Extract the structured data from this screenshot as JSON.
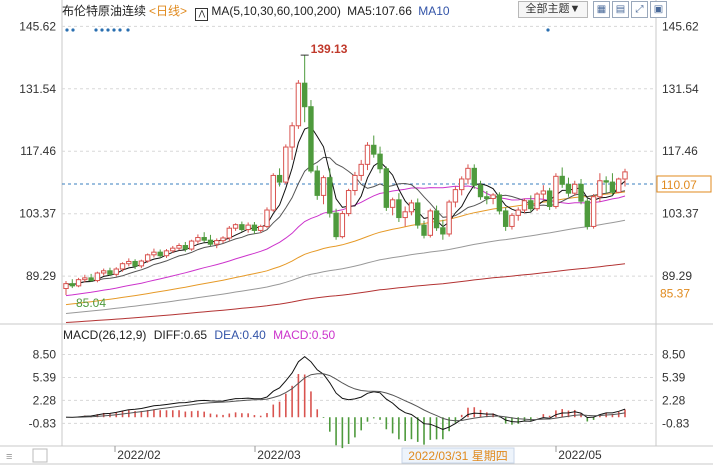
{
  "header": {
    "instrument": "布伦特原油连续",
    "period": "<日线>",
    "ma_label": "MA(5,10,30,60,100,200)",
    "ma5_label": "MA5:107.66",
    "ma10_label": "MA10",
    "theme_button": "全部主题▼",
    "tool_icons": [
      "grid-icon",
      "layout-icon",
      "fullscreen-icon",
      "window-icon"
    ]
  },
  "macd_header": {
    "name": "MACD(26,12,9)",
    "diff": "DIFF:0.65",
    "dea": "DEA:0.40",
    "macd": "MACD:0.50"
  },
  "colors": {
    "up": "#d9534f",
    "down": "#4e9a3d",
    "ma5": "#111111",
    "ma10": "#555555",
    "ma30": "#cc33cc",
    "ma60": "#e69a28",
    "ma100": "#999999",
    "ma200": "#b33333",
    "diff": "#111111",
    "dea": "#555555",
    "dotted": "#3a7fbf"
  },
  "chart_data": {
    "type": "candlestick",
    "title": "布伦特原油连续",
    "price_axis": {
      "ticks": [
        145.62,
        131.54,
        117.46,
        103.37,
        89.29
      ],
      "range": [
        78.5,
        147.5
      ]
    },
    "current_price": 110.07,
    "extra_label": 85.37,
    "annotations": {
      "high": 139.13,
      "low": 85.04
    },
    "date_axis": [
      "2022/02",
      "2022/03",
      "2022/05"
    ],
    "cursor_date": "2022/03/31 星期四",
    "candles": [
      [
        86.5,
        88.2,
        85.04,
        87.6
      ],
      [
        87.6,
        88.6,
        86.6,
        87.1
      ],
      [
        87.1,
        88.9,
        86.8,
        88.5
      ],
      [
        88.5,
        89.6,
        87.9,
        88.9
      ],
      [
        88.9,
        89.8,
        88.0,
        88.3
      ],
      [
        88.3,
        90.3,
        87.9,
        90.0
      ],
      [
        90.0,
        91.0,
        89.4,
        90.5
      ],
      [
        90.5,
        91.2,
        89.4,
        89.7
      ],
      [
        89.7,
        91.3,
        89.2,
        90.9
      ],
      [
        90.9,
        92.4,
        90.3,
        92.1
      ],
      [
        92.1,
        93.3,
        91.5,
        92.6
      ],
      [
        92.6,
        93.1,
        90.9,
        91.6
      ],
      [
        91.6,
        93.0,
        91.1,
        92.7
      ],
      [
        92.7,
        94.4,
        92.3,
        94.1
      ],
      [
        94.1,
        95.5,
        93.5,
        94.7
      ],
      [
        94.7,
        95.3,
        93.4,
        93.9
      ],
      [
        93.9,
        95.4,
        93.4,
        95.0
      ],
      [
        95.0,
        96.1,
        94.5,
        95.6
      ],
      [
        95.6,
        96.7,
        95.1,
        96.2
      ],
      [
        96.2,
        97.0,
        94.8,
        95.4
      ],
      [
        95.4,
        97.5,
        95.0,
        97.2
      ],
      [
        97.2,
        98.7,
        96.6,
        98.0
      ],
      [
        98.0,
        99.2,
        96.9,
        97.4
      ],
      [
        97.4,
        98.6,
        96.1,
        96.5
      ],
      [
        96.5,
        97.8,
        95.6,
        97.3
      ],
      [
        97.3,
        98.3,
        96.7,
        97.9
      ],
      [
        97.9,
        100.6,
        97.3,
        100.1
      ],
      [
        100.1,
        101.2,
        99.5,
        100.9
      ],
      [
        100.9,
        101.6,
        99.3,
        99.8
      ],
      [
        99.8,
        101.4,
        99.1,
        100.8
      ],
      [
        100.8,
        101.5,
        98.8,
        99.6
      ],
      [
        99.6,
        100.9,
        99.0,
        100.5
      ],
      [
        100.5,
        104.8,
        100.1,
        104.2
      ],
      [
        104.2,
        112.5,
        103.8,
        112.0
      ],
      [
        112.0,
        113.6,
        109.5,
        110.5
      ],
      [
        110.5,
        119.0,
        110.0,
        118.4
      ],
      [
        118.4,
        124.0,
        115.5,
        123.2
      ],
      [
        123.2,
        133.5,
        122.5,
        132.8
      ],
      [
        132.8,
        139.13,
        124.0,
        127.5
      ],
      [
        127.5,
        129.0,
        112.5,
        113.0
      ],
      [
        113.0,
        114.2,
        106.5,
        107.5
      ],
      [
        107.5,
        112.0,
        105.5,
        111.5
      ],
      [
        111.5,
        113.6,
        102.5,
        103.5
      ],
      [
        103.5,
        104.5,
        97.5,
        98.2
      ],
      [
        98.2,
        104.0,
        97.8,
        103.4
      ],
      [
        103.4,
        109.0,
        102.8,
        108.6
      ],
      [
        108.6,
        112.8,
        107.5,
        112.0
      ],
      [
        112.0,
        115.5,
        110.8,
        114.5
      ],
      [
        114.5,
        119.5,
        113.2,
        118.8
      ],
      [
        118.8,
        121.0,
        116.0,
        116.8
      ],
      [
        116.8,
        118.5,
        112.5,
        113.5
      ],
      [
        113.5,
        114.0,
        104.0,
        104.8
      ],
      [
        104.8,
        107.0,
        103.0,
        106.5
      ],
      [
        106.5,
        108.0,
        101.5,
        102.5
      ],
      [
        102.5,
        105.0,
        100.5,
        103.8
      ],
      [
        103.8,
        106.5,
        103.0,
        105.8
      ],
      [
        105.8,
        106.8,
        100.0,
        100.8
      ],
      [
        100.8,
        101.8,
        97.8,
        98.5
      ],
      [
        98.5,
        104.5,
        98.0,
        104.0
      ],
      [
        104.0,
        105.2,
        99.5,
        100.2
      ],
      [
        100.2,
        102.0,
        97.5,
        98.8
      ],
      [
        98.8,
        106.5,
        98.2,
        106.0
      ],
      [
        106.0,
        109.5,
        104.8,
        108.8
      ],
      [
        108.8,
        111.8,
        107.5,
        111.2
      ],
      [
        111.2,
        114.5,
        110.0,
        113.6
      ],
      [
        113.6,
        114.5,
        109.0,
        109.8
      ],
      [
        109.8,
        110.8,
        106.5,
        107.2
      ],
      [
        107.2,
        108.5,
        105.5,
        106.8
      ],
      [
        106.8,
        108.0,
        105.5,
        107.6
      ],
      [
        107.6,
        108.2,
        103.2,
        104.0
      ],
      [
        104.0,
        104.8,
        99.5,
        100.5
      ],
      [
        100.5,
        103.5,
        99.8,
        103.0
      ],
      [
        103.0,
        104.8,
        101.8,
        104.2
      ],
      [
        104.2,
        106.8,
        103.5,
        106.3
      ],
      [
        106.3,
        107.5,
        103.8,
        104.5
      ],
      [
        104.5,
        108.2,
        104.0,
        107.8
      ],
      [
        107.8,
        109.8,
        106.5,
        108.5
      ],
      [
        108.5,
        109.2,
        104.2,
        105.0
      ],
      [
        105.0,
        112.5,
        104.5,
        111.8
      ],
      [
        111.8,
        113.8,
        109.2,
        110.0
      ],
      [
        110.0,
        111.5,
        107.2,
        108.0
      ],
      [
        108.0,
        110.8,
        107.4,
        110.0
      ],
      [
        110.0,
        111.2,
        105.5,
        106.2
      ],
      [
        106.2,
        106.8,
        99.8,
        100.5
      ],
      [
        100.5,
        107.8,
        100.0,
        107.2
      ],
      [
        107.2,
        112.5,
        106.0,
        110.8
      ],
      [
        110.8,
        111.8,
        108.0,
        110.5
      ],
      [
        110.5,
        112.5,
        107.5,
        108.2
      ],
      [
        108.2,
        111.5,
        108.0,
        111.2
      ],
      [
        111.2,
        113.5,
        109.5,
        112.8
      ]
    ],
    "macd_axis": {
      "ticks": [
        8.5,
        5.39,
        2.28,
        -0.83
      ],
      "range": [
        -3.9,
        10.2
      ]
    },
    "macd": {
      "diff": 0.65,
      "dea": 0.4,
      "hist": 0.5
    }
  }
}
